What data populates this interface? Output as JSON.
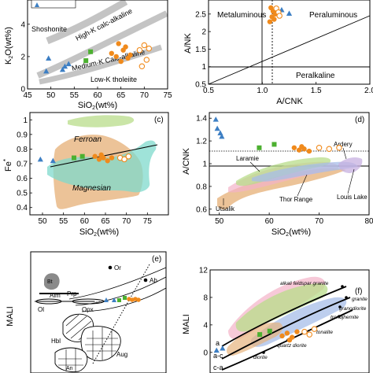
{
  "chart_data": [
    {
      "type": "scatter",
      "panel": "a",
      "xlabel": "SiO2(wt%)",
      "ylabel": "K2O(wt%)",
      "xlim": [
        45,
        75
      ],
      "ylim": [
        0,
        5.5
      ],
      "xticks": [
        45,
        50,
        55,
        60,
        65,
        70,
        75
      ],
      "yticks": [
        0,
        2,
        4
      ],
      "annotations": [
        "Shoshonite",
        "High-K calc-alkaline",
        "Medium-K Calc-alkaline",
        "Low-K tholeiite"
      ],
      "series": [
        {
          "marker": "triangle",
          "color": "#3d7fc4",
          "x": [
            49,
            49.5,
            52.5,
            53,
            53.8
          ],
          "y": [
            1.1,
            1.9,
            1.2,
            1.4,
            1.55
          ]
        },
        {
          "marker": "square",
          "color": "#4cb030",
          "x": [
            57.5,
            58.5
          ],
          "y": [
            1.75,
            2.3
          ]
        },
        {
          "marker": "circle",
          "color": "#f08a1c",
          "x": [
            63,
            64.5,
            65.5,
            66,
            66.5,
            67,
            64,
            65
          ],
          "y": [
            2.2,
            2.8,
            2.4,
            2.6,
            1.9,
            2.1,
            2.0,
            1.7
          ]
        },
        {
          "marker": "circle-open",
          "color": "#f08a1c",
          "x": [
            69,
            70,
            71,
            70.5,
            69.5
          ],
          "y": [
            2.4,
            2.7,
            2.5,
            1.8,
            1.4
          ]
        }
      ]
    },
    {
      "type": "scatter",
      "panel": "b",
      "xlabel": "A/CNK",
      "ylabel": "A/NK",
      "xlim": [
        0.5,
        2.0
      ],
      "ylim": [
        0.5,
        2.9
      ],
      "xticks": [
        0.5,
        1.0,
        1.5,
        2.0
      ],
      "yticks": [
        0.5,
        1.0,
        1.5,
        2.0,
        2.5
      ],
      "annotations": [
        "Metaluminous",
        "Peraluminous",
        "Peralkaline"
      ],
      "series": [
        {
          "marker": "triangle",
          "color": "#3d7fc4",
          "x": [
            1.18,
            1.25
          ],
          "y": [
            2.62,
            2.52
          ]
        },
        {
          "marker": "square",
          "color": "#4cb030",
          "x": [
            1.13
          ],
          "y": [
            2.62
          ]
        },
        {
          "marker": "circle",
          "color": "#f08a1c",
          "x": [
            1.08,
            1.1,
            1.12,
            1.09,
            1.11,
            1.07
          ],
          "y": [
            2.68,
            2.58,
            2.5,
            2.42,
            2.35,
            2.28
          ]
        },
        {
          "marker": "circle-open",
          "color": "#f08a1c",
          "x": [
            1.13,
            1.15,
            1.16
          ],
          "y": [
            2.66,
            2.55,
            2.45
          ]
        }
      ]
    },
    {
      "type": "scatter",
      "panel": "c",
      "xlabel": "SiO2(wt%)",
      "ylabel": "Fe*",
      "xlim": [
        47,
        80
      ],
      "ylim": [
        0.35,
        1.05
      ],
      "xticks": [
        50,
        55,
        60,
        65,
        70,
        75
      ],
      "yticks": [
        0.4,
        0.5,
        0.6,
        0.7,
        0.8,
        0.9,
        1.0
      ],
      "annotations": [
        "Ferroan",
        "Magnesian"
      ],
      "series": [
        {
          "marker": "triangle",
          "color": "#3d7fc4",
          "x": [
            49.5,
            52.5
          ],
          "y": [
            0.73,
            0.72
          ]
        },
        {
          "marker": "square",
          "color": "#4cb030",
          "x": [
            57.5,
            59.5
          ],
          "y": [
            0.74,
            0.75
          ]
        },
        {
          "marker": "circle",
          "color": "#f08a1c",
          "x": [
            62.5,
            63.5,
            64.5,
            65.5,
            66.5,
            64
          ],
          "y": [
            0.75,
            0.73,
            0.74,
            0.72,
            0.74,
            0.76
          ]
        },
        {
          "marker": "circle-open",
          "color": "#f08a1c",
          "x": [
            68.5,
            69.5,
            70.5
          ],
          "y": [
            0.74,
            0.73,
            0.75
          ]
        }
      ]
    },
    {
      "type": "scatter",
      "panel": "d",
      "xlabel": "SiO2(wt%)",
      "ylabel": "A/CNK",
      "xlim": [
        48,
        80
      ],
      "ylim": [
        0.55,
        1.45
      ],
      "xticks": [
        50,
        60,
        70,
        80
      ],
      "yticks": [
        0.6,
        0.8,
        1.0,
        1.2,
        1.4
      ],
      "annotations": [
        "Ardery",
        "Laramie",
        "Louis Lake",
        "Thor Range",
        "Utsalik"
      ],
      "series": [
        {
          "marker": "triangle",
          "color": "#3d7fc4",
          "x": [
            49.3,
            49.6,
            50.2,
            50.5
          ],
          "y": [
            1.39,
            1.31,
            1.27,
            1.24
          ]
        },
        {
          "marker": "square",
          "color": "#4cb030",
          "x": [
            58,
            61
          ],
          "y": [
            1.14,
            1.17
          ]
        },
        {
          "marker": "circle",
          "color": "#f08a1c",
          "x": [
            65,
            66,
            67,
            68,
            66.5
          ],
          "y": [
            1.14,
            1.12,
            1.13,
            1.11,
            1.15
          ]
        },
        {
          "marker": "circle-open",
          "color": "#f08a1c",
          "x": [
            70,
            72,
            74
          ],
          "y": [
            1.14,
            1.13,
            1.14
          ]
        }
      ]
    },
    {
      "type": "scatter",
      "panel": "e",
      "ylabel": "MALI",
      "annotations": [
        "Or",
        "Ab",
        "Bt",
        "Alm",
        "Prp",
        "Ol",
        "Opx",
        "Hbl",
        "Aug",
        "An"
      ],
      "series": [
        {
          "marker": "triangle",
          "color": "#3d7fc4"
        },
        {
          "marker": "square",
          "color": "#4cb030"
        },
        {
          "marker": "circle",
          "color": "#f08a1c"
        }
      ]
    },
    {
      "type": "scatter",
      "panel": "f",
      "ylabel": "MALI",
      "xlim": [
        48,
        80
      ],
      "ylim": [
        -3,
        12
      ],
      "yticks": [
        0,
        4,
        8,
        12
      ],
      "annotations": [
        "alkali feldspar granite",
        "granite",
        "granodiorite",
        "trondjhemite",
        "tonalite",
        "quartz diorite",
        "diorite",
        "a",
        "a-c",
        "c-a"
      ],
      "series": [
        {
          "marker": "triangle",
          "color": "#3d7fc4",
          "x": [
            49.3,
            50.5
          ],
          "y": [
            0.3,
            0.6
          ]
        },
        {
          "marker": "square",
          "color": "#4cb030",
          "x": [
            58,
            60
          ],
          "y": [
            2.6,
            3.1
          ]
        },
        {
          "marker": "circle",
          "color": "#f08a1c",
          "x": [
            62.5,
            63.5,
            64.5,
            65.5,
            64
          ],
          "y": [
            2.4,
            2.8,
            2.2,
            3.0,
            1.8
          ]
        },
        {
          "marker": "circle-open",
          "color": "#f08a1c",
          "x": [
            67,
            68,
            69
          ],
          "y": [
            3.0,
            2.6,
            3.4
          ]
        }
      ]
    }
  ]
}
